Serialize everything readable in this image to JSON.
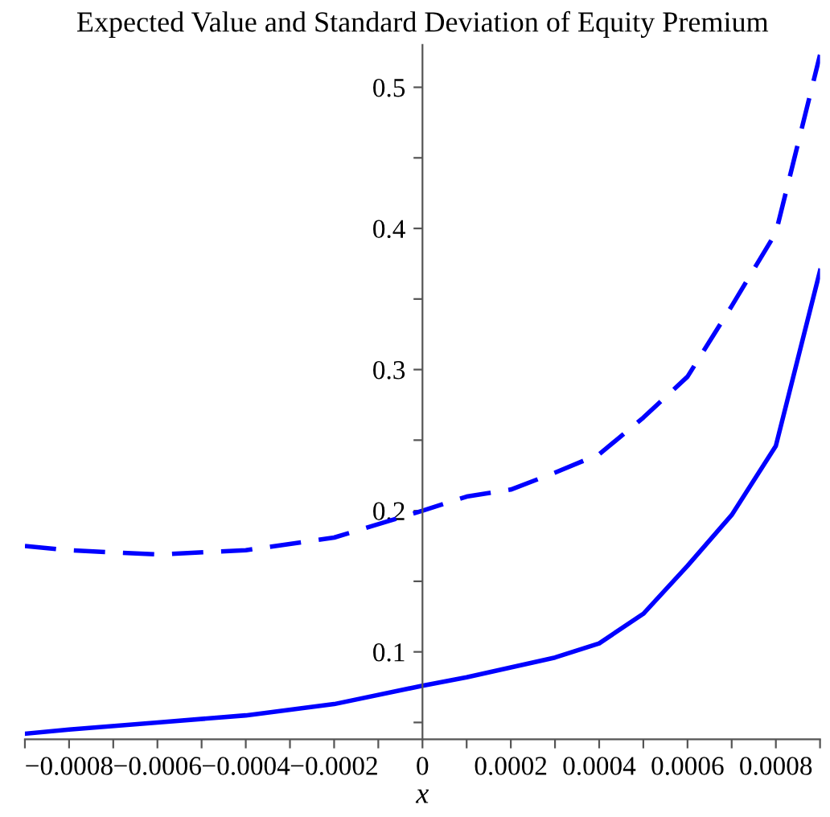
{
  "chart_data": {
    "type": "line",
    "title": "Expected Value and Standard Deviation of Equity Premium",
    "xlabel": "x",
    "x": [
      -0.0009,
      -0.0008,
      -0.0006,
      -0.0004,
      -0.0002,
      0,
      0.0001,
      0.0002,
      0.0003,
      0.0004,
      0.0005,
      0.0006,
      0.0007,
      0.0008,
      0.0009
    ],
    "series": [
      {
        "color": "#0000ff",
        "line_style": "solid",
        "values": [
          0.042,
          0.045,
          0.05,
          0.055,
          0.063,
          0.076,
          0.082,
          0.089,
          0.096,
          0.106,
          0.127,
          0.161,
          0.197,
          0.246,
          0.37
        ]
      },
      {
        "color": "#0000ff",
        "line_style": "dashed",
        "values": [
          0.175,
          0.172,
          0.169,
          0.172,
          0.181,
          0.2,
          0.21,
          0.215,
          0.227,
          0.24,
          0.266,
          0.295,
          0.345,
          0.397,
          0.523
        ]
      }
    ],
    "xlim": [
      -0.0009,
      0.0009
    ],
    "ylim": [
      0.038,
      0.53
    ],
    "xticks": [
      {
        "value": -0.0009,
        "label": null
      },
      -0.0008,
      {
        "value": -0.0007,
        "label": null
      },
      -0.0006,
      {
        "value": -0.0005,
        "label": null
      },
      -0.0004,
      {
        "value": -0.0003,
        "label": null
      },
      -0.0002,
      {
        "value": -0.0001,
        "label": null
      },
      0,
      {
        "value": 0.0001,
        "label": null
      },
      0.0002,
      {
        "value": 0.0003,
        "label": null
      },
      0.0004,
      {
        "value": 0.0005,
        "label": null
      },
      0.0006,
      {
        "value": 0.0007,
        "label": null
      },
      0.0008,
      {
        "value": 0.0009,
        "label": null
      }
    ],
    "yticks": [
      {
        "value": 0.05,
        "label": null
      },
      0.1,
      {
        "value": 0.15,
        "label": null
      },
      0.2,
      {
        "value": 0.25,
        "label": null
      },
      0.3,
      {
        "value": 0.35,
        "label": null
      },
      0.4,
      {
        "value": 0.45,
        "label": null
      },
      0.5
    ],
    "grid": false,
    "legend": false,
    "marker": "none"
  }
}
